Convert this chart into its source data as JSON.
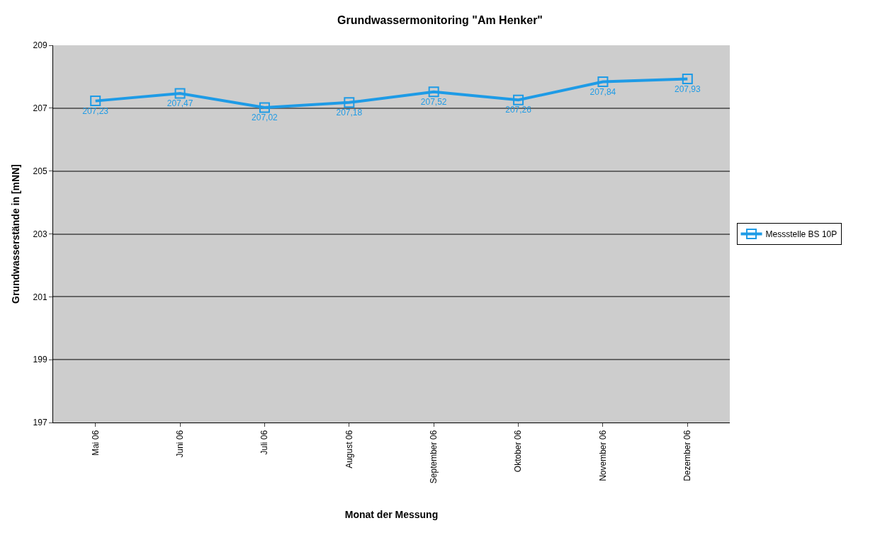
{
  "chart_data": {
    "type": "line",
    "title": "Grundwassermonitoring \"Am Henker\"",
    "xlabel": "Monat der Messung",
    "ylabel": "Grundwasserstände in [mNN]",
    "categories": [
      "Mai 06",
      "Juni 06",
      "Juli 06",
      "August 06",
      "September 06",
      "Oktober 06",
      "November 06",
      "Dezember 06"
    ],
    "series": [
      {
        "name": "Messstelle BS 10P",
        "color": "#1e9be6",
        "values": [
          207.23,
          207.47,
          207.02,
          207.18,
          207.52,
          207.26,
          207.84,
          207.93
        ],
        "value_labels": [
          "207,23",
          "207,47",
          "207,02",
          "207,18",
          "207,52",
          "207,26",
          "207,84",
          "207,93"
        ]
      }
    ],
    "ylim": [
      197,
      209
    ],
    "yticks": [
      197,
      199,
      201,
      203,
      205,
      207,
      209
    ],
    "grid": "y",
    "legend": "right",
    "marker": "square",
    "line_style": "solid"
  }
}
